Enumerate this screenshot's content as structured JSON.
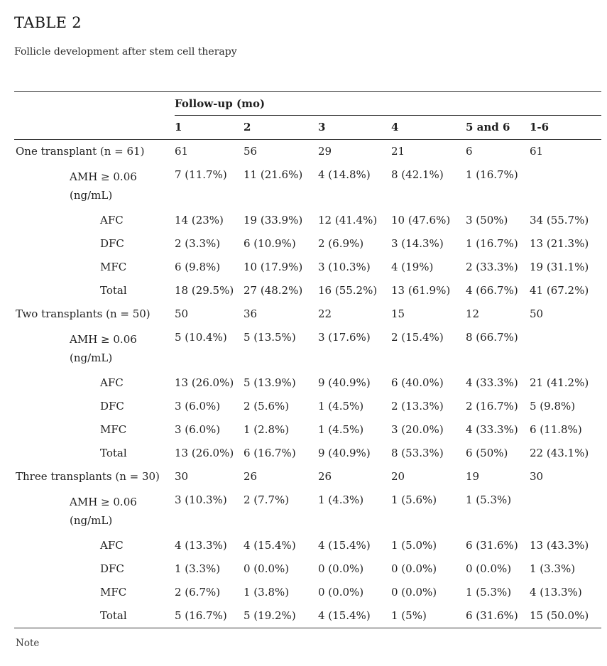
{
  "title": "TABLE 2",
  "subtitle": "Follicle development after stem cell therapy",
  "note": "Note",
  "table": {
    "group_header": "Follow-up (mo)",
    "columns": [
      "1",
      "2",
      "3",
      "4",
      "5 and 6",
      "1-6"
    ],
    "groups": [
      {
        "label": "One transplant (n = 61)",
        "counts": [
          "61",
          "56",
          "29",
          "21",
          "6",
          "61"
        ],
        "rows": [
          {
            "label_lines": [
              "AMH ≥ 0.06",
              "(ng/mL)"
            ],
            "indent": 1,
            "values": [
              "7 (11.7%)",
              "11 (21.6%)",
              "4 (14.8%)",
              "8 (42.1%)",
              "1 (16.7%)",
              ""
            ]
          },
          {
            "label_lines": [
              "AFC"
            ],
            "indent": 2,
            "values": [
              "14 (23%)",
              "19 (33.9%)",
              "12 (41.4%)",
              "10 (47.6%)",
              "3 (50%)",
              "34 (55.7%)"
            ]
          },
          {
            "label_lines": [
              "DFC"
            ],
            "indent": 2,
            "values": [
              "2 (3.3%)",
              "6 (10.9%)",
              "2 (6.9%)",
              "3 (14.3%)",
              "1 (16.7%)",
              "13 (21.3%)"
            ]
          },
          {
            "label_lines": [
              "MFC"
            ],
            "indent": 2,
            "values": [
              "6 (9.8%)",
              "10 (17.9%)",
              "3 (10.3%)",
              "4 (19%)",
              "2 (33.3%)",
              "19 (31.1%)"
            ]
          },
          {
            "label_lines": [
              "Total"
            ],
            "indent": 2,
            "values": [
              "18 (29.5%)",
              "27 (48.2%)",
              "16 (55.2%)",
              "13 (61.9%)",
              "4 (66.7%)",
              "41 (67.2%)"
            ]
          }
        ]
      },
      {
        "label": "Two transplants (n = 50)",
        "counts": [
          "50",
          "36",
          "22",
          "15",
          "12",
          "50"
        ],
        "rows": [
          {
            "label_lines": [
              "AMH ≥ 0.06",
              "(ng/mL)"
            ],
            "indent": 1,
            "values": [
              "5 (10.4%)",
              "5 (13.5%)",
              "3 (17.6%)",
              "2 (15.4%)",
              "8 (66.7%)",
              ""
            ]
          },
          {
            "label_lines": [
              "AFC"
            ],
            "indent": 2,
            "values": [
              "13 (26.0%)",
              "5 (13.9%)",
              "9 (40.9%)",
              "6 (40.0%)",
              "4 (33.3%)",
              "21 (41.2%)"
            ]
          },
          {
            "label_lines": [
              "DFC"
            ],
            "indent": 2,
            "values": [
              "3 (6.0%)",
              "2 (5.6%)",
              "1 (4.5%)",
              "2 (13.3%)",
              "2 (16.7%)",
              "5 (9.8%)"
            ]
          },
          {
            "label_lines": [
              "MFC"
            ],
            "indent": 2,
            "values": [
              "3 (6.0%)",
              "1 (2.8%)",
              "1 (4.5%)",
              "3 (20.0%)",
              "4 (33.3%)",
              "6 (11.8%)"
            ]
          },
          {
            "label_lines": [
              "Total"
            ],
            "indent": 2,
            "values": [
              "13 (26.0%)",
              "6 (16.7%)",
              "9 (40.9%)",
              "8 (53.3%)",
              "6 (50%)",
              "22 (43.1%)"
            ]
          }
        ]
      },
      {
        "label": "Three transplants (n = 30)",
        "counts": [
          "30",
          "26",
          "26",
          "20",
          "19",
          "30"
        ],
        "rows": [
          {
            "label_lines": [
              "AMH ≥ 0.06",
              "(ng/mL)"
            ],
            "indent": 1,
            "values": [
              "3 (10.3%)",
              "2 (7.7%)",
              "1 (4.3%)",
              "1 (5.6%)",
              "1 (5.3%)",
              ""
            ]
          },
          {
            "label_lines": [
              "AFC"
            ],
            "indent": 2,
            "values": [
              "4 (13.3%)",
              "4 (15.4%)",
              "4 (15.4%)",
              "1 (5.0%)",
              "6 (31.6%)",
              "13 (43.3%)"
            ]
          },
          {
            "label_lines": [
              "DFC"
            ],
            "indent": 2,
            "values": [
              "1 (3.3%)",
              "0 (0.0%)",
              "0 (0.0%)",
              "0 (0.0%)",
              "0 (0.0%)",
              "1 (3.3%)"
            ]
          },
          {
            "label_lines": [
              "MFC"
            ],
            "indent": 2,
            "values": [
              "2 (6.7%)",
              "1 (3.8%)",
              "0 (0.0%)",
              "0 (0.0%)",
              "1 (5.3%)",
              "4 (13.3%)"
            ]
          },
          {
            "label_lines": [
              "Total"
            ],
            "indent": 2,
            "values": [
              "5 (16.7%)",
              "5 (19.2%)",
              "4 (15.4%)",
              "1 (5%)",
              "6 (31.6%)",
              "15 (50.0%)"
            ]
          }
        ]
      }
    ]
  }
}
